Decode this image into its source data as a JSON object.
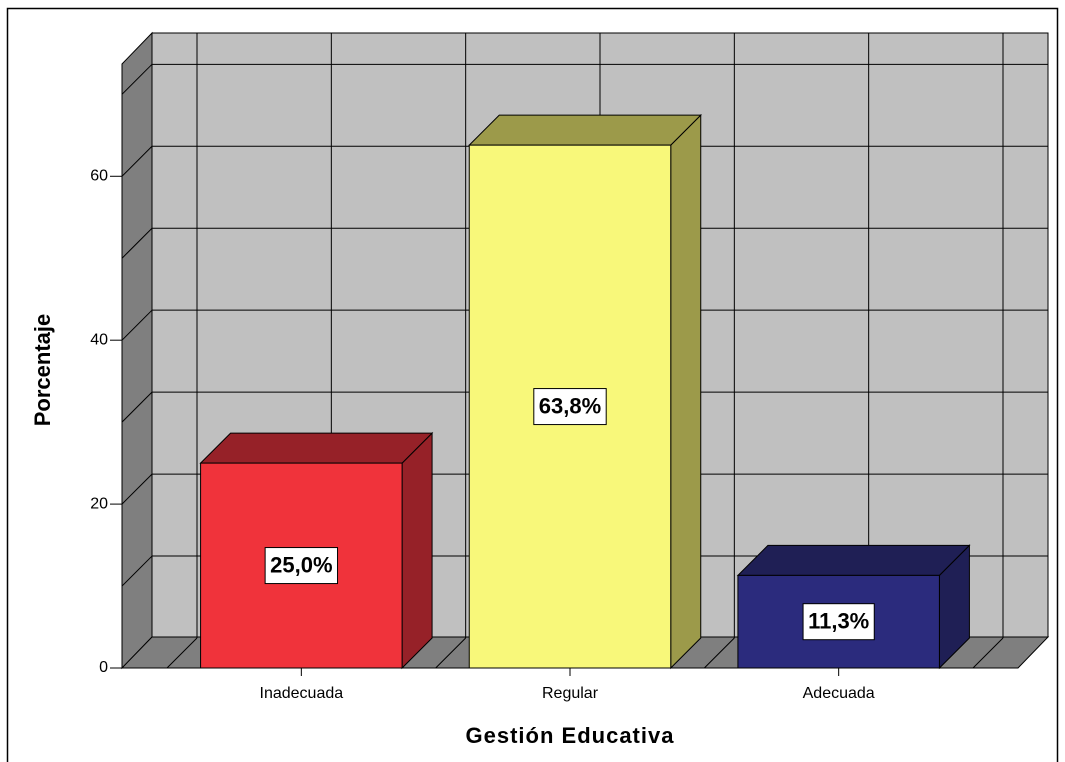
{
  "chart_data": {
    "type": "bar3d",
    "x_label": "Gestión Educativa",
    "y_label": "Porcentaje",
    "categories": [
      "Inadecuada",
      "Regular",
      "Adecuada"
    ],
    "values": [
      25.0,
      63.8,
      11.3
    ],
    "value_labels": [
      "25,0%",
      "63,8%",
      "11,3%"
    ],
    "colors": [
      "#f0333b",
      "#f8f87a",
      "#2b2b7d"
    ],
    "side_colors": [
      "#962128",
      "#9c9a4a",
      "#1f1f55"
    ],
    "ylim": [
      0,
      73.7
    ],
    "yticks": [
      0,
      20,
      40,
      60
    ],
    "ygrid": [
      10,
      20,
      30,
      40,
      50,
      60,
      70
    ],
    "grid": true
  }
}
